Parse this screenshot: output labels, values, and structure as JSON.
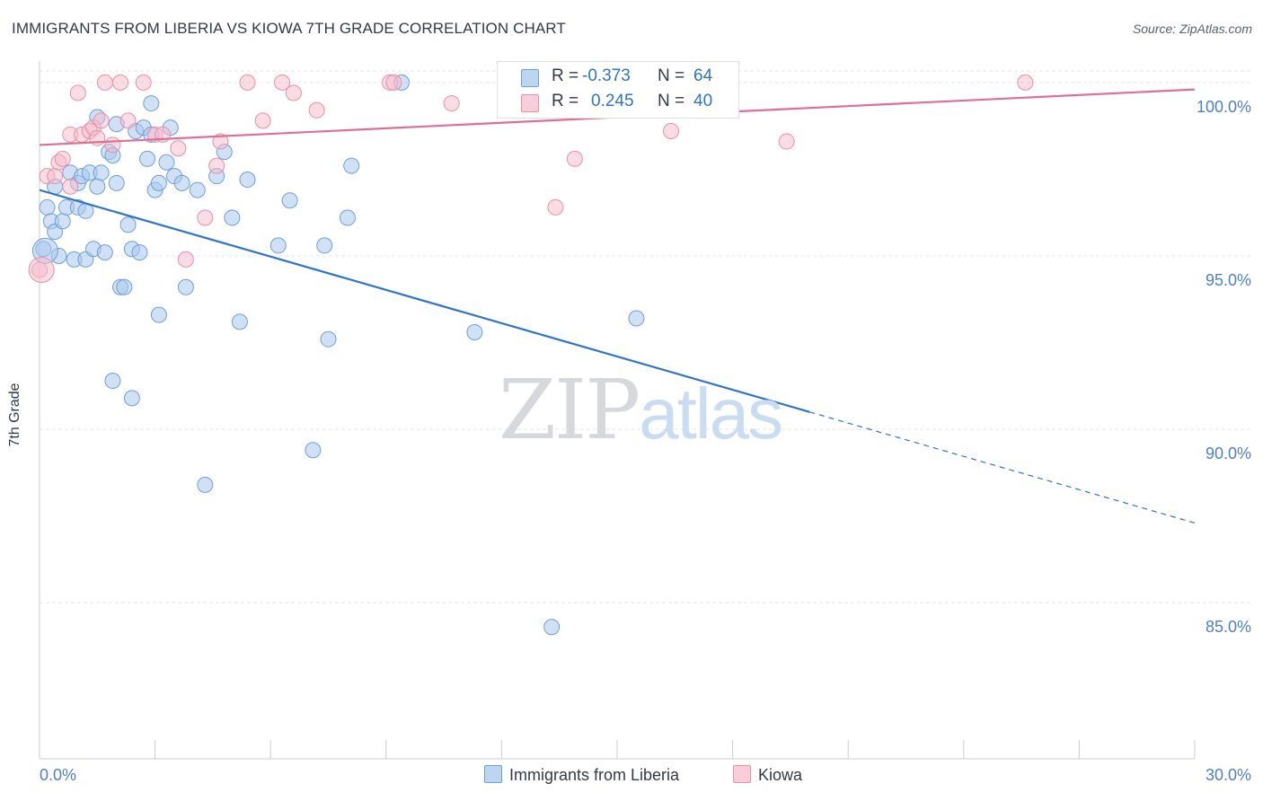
{
  "title": "IMMIGRANTS FROM LIBERIA VS KIOWA 7TH GRADE CORRELATION CHART",
  "source": "Source: ZipAtlas.com",
  "watermark": {
    "zip": "ZIP",
    "atlas": "atlas"
  },
  "colors": {
    "blue_fill": "#a9c8ec",
    "blue_stroke": "#6f9fd8",
    "blue_line": "#2f74c9",
    "pink_fill": "#f5b9cb",
    "pink_stroke": "#e88fab",
    "pink_line": "#e06e94",
    "axis_text": "#4f7fc7",
    "grid": "#e3e5e9"
  },
  "legend": {
    "rows": [
      {
        "r_label": "R =",
        "r_value": "-0.373",
        "n_label": "N =",
        "n_value": "64"
      },
      {
        "r_label": "R =",
        "r_value": "0.245",
        "n_label": "N =",
        "n_value": "40"
      }
    ]
  },
  "chart_data": {
    "type": "scatter",
    "title": "IMMIGRANTS FROM LIBERIA VS KIOWA 7TH GRADE CORRELATION CHART",
    "xlabel": "",
    "ylabel": "7th Grade",
    "xlim": [
      0,
      30
    ],
    "ylim": [
      80.5,
      100.8
    ],
    "x_tick_labels": [
      "0.0%",
      "30.0%"
    ],
    "y_ticks": [
      85,
      90,
      95,
      100
    ],
    "y_tick_labels": [
      "85.0%",
      "90.0%",
      "95.0%",
      "100.0%"
    ],
    "grid": true,
    "series": [
      {
        "name": "Immigrants from Liberia",
        "color": "blue",
        "r": -0.373,
        "n": 64,
        "trend": {
          "x0": 0,
          "y0": 96.9,
          "x1": 20.0,
          "y1": 90.5,
          "dashed_to_x": 30.0,
          "dashed_to_y": 87.3
        },
        "points": [
          [
            0.1,
            95.2
          ],
          [
            0.2,
            96.4
          ],
          [
            0.3,
            96.0
          ],
          [
            0.4,
            95.7
          ],
          [
            0.4,
            97.0
          ],
          [
            0.5,
            95.0
          ],
          [
            0.6,
            96.0
          ],
          [
            0.7,
            96.4
          ],
          [
            0.8,
            97.4
          ],
          [
            0.9,
            94.9
          ],
          [
            1.0,
            96.4
          ],
          [
            1.0,
            97.1
          ],
          [
            1.1,
            97.3
          ],
          [
            1.2,
            96.3
          ],
          [
            1.2,
            94.9
          ],
          [
            1.3,
            97.4
          ],
          [
            1.4,
            95.2
          ],
          [
            1.5,
            97.0
          ],
          [
            1.5,
            99.0
          ],
          [
            1.6,
            97.4
          ],
          [
            1.7,
            95.1
          ],
          [
            1.8,
            98.0
          ],
          [
            1.9,
            91.4
          ],
          [
            1.9,
            97.9
          ],
          [
            2.0,
            97.1
          ],
          [
            2.0,
            98.8
          ],
          [
            2.1,
            94.1
          ],
          [
            2.2,
            94.1
          ],
          [
            2.3,
            95.9
          ],
          [
            2.4,
            95.2
          ],
          [
            2.4,
            90.9
          ],
          [
            2.5,
            98.6
          ],
          [
            2.6,
            95.1
          ],
          [
            2.7,
            98.7
          ],
          [
            2.8,
            97.8
          ],
          [
            2.9,
            99.4
          ],
          [
            2.9,
            98.5
          ],
          [
            3.0,
            96.9
          ],
          [
            3.1,
            93.3
          ],
          [
            3.1,
            97.1
          ],
          [
            3.3,
            97.7
          ],
          [
            3.4,
            98.7
          ],
          [
            3.5,
            97.3
          ],
          [
            3.7,
            97.1
          ],
          [
            3.8,
            94.1
          ],
          [
            4.1,
            96.9
          ],
          [
            4.3,
            88.4
          ],
          [
            4.6,
            97.3
          ],
          [
            4.8,
            98.0
          ],
          [
            5.0,
            96.1
          ],
          [
            5.2,
            93.1
          ],
          [
            5.4,
            97.2
          ],
          [
            6.2,
            95.3
          ],
          [
            6.5,
            96.6
          ],
          [
            7.1,
            89.4
          ],
          [
            7.4,
            95.3
          ],
          [
            7.5,
            92.6
          ],
          [
            8.0,
            96.1
          ],
          [
            8.1,
            97.6
          ],
          [
            9.4,
            100.0
          ],
          [
            11.3,
            92.8
          ],
          [
            13.3,
            84.3
          ],
          [
            15.5,
            93.2
          ],
          [
            0.15,
            95.15
          ]
        ]
      },
      {
        "name": "Kiowa",
        "color": "pink",
        "r": 0.245,
        "n": 40,
        "trend": {
          "x0": 0,
          "y0": 98.2,
          "x1": 30.0,
          "y1": 99.8
        },
        "points": [
          [
            0.0,
            94.6
          ],
          [
            0.2,
            97.3
          ],
          [
            0.4,
            97.3
          ],
          [
            0.5,
            97.7
          ],
          [
            0.6,
            97.8
          ],
          [
            0.8,
            97.0
          ],
          [
            0.8,
            98.5
          ],
          [
            1.0,
            99.7
          ],
          [
            1.1,
            98.5
          ],
          [
            1.3,
            98.6
          ],
          [
            1.4,
            98.7
          ],
          [
            1.5,
            98.4
          ],
          [
            1.6,
            98.9
          ],
          [
            1.7,
            100.0
          ],
          [
            1.9,
            98.2
          ],
          [
            2.1,
            100.0
          ],
          [
            2.3,
            98.9
          ],
          [
            2.7,
            100.0
          ],
          [
            3.0,
            98.5
          ],
          [
            3.2,
            98.5
          ],
          [
            3.6,
            98.1
          ],
          [
            3.8,
            94.9
          ],
          [
            4.3,
            96.1
          ],
          [
            4.6,
            97.6
          ],
          [
            4.7,
            98.3
          ],
          [
            5.4,
            100.0
          ],
          [
            5.8,
            98.9
          ],
          [
            6.3,
            100.0
          ],
          [
            6.6,
            99.7
          ],
          [
            7.2,
            99.2
          ],
          [
            9.1,
            100.0
          ],
          [
            9.2,
            100.0
          ],
          [
            10.7,
            99.4
          ],
          [
            13.4,
            96.4
          ],
          [
            13.9,
            97.8
          ],
          [
            15.8,
            100.0
          ],
          [
            16.4,
            98.6
          ],
          [
            19.4,
            98.3
          ],
          [
            25.6,
            100.0
          ],
          [
            0.05,
            94.6
          ]
        ]
      }
    ]
  }
}
